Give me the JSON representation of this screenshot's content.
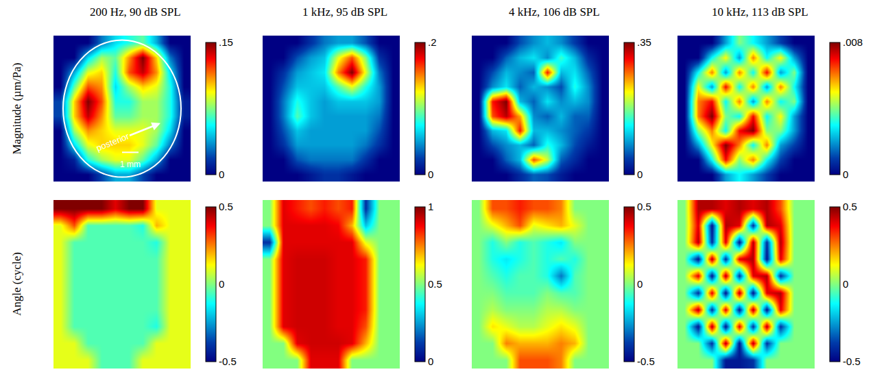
{
  "chart_data": [
    {
      "type": "heatmap",
      "title": "200 Hz, 90 dB SPL",
      "ylabel": "Magnitude (µm/Pa)",
      "color": "Jet",
      "tick_labels": false,
      "annotations": [
        {
          "text": "posterior"
        },
        {
          "text": "1 mm"
        }
      ],
      "zlim": [
        0,
        0.15
      ],
      "zticks": [
        0,
        {
          "value": 0.15,
          "label": ".15"
        }
      ],
      "z": [
        [
          0,
          0,
          0,
          0.03,
          0.05,
          0.06,
          0.07,
          0.04,
          0,
          0
        ],
        [
          0,
          0,
          0.05,
          0.08,
          0.07,
          0.11,
          0.15,
          0.1,
          0.03,
          0
        ],
        [
          0,
          0.04,
          0.09,
          0.1,
          0.06,
          0.12,
          0.14,
          0.11,
          0.05,
          0
        ],
        [
          0,
          0.07,
          0.12,
          0.11,
          0.05,
          0.08,
          0.1,
          0.09,
          0.06,
          0
        ],
        [
          0.02,
          0.1,
          0.15,
          0.12,
          0.06,
          0.06,
          0.08,
          0.08,
          0.06,
          0.01
        ],
        [
          0.02,
          0.1,
          0.14,
          0.11,
          0.07,
          0.07,
          0.08,
          0.08,
          0.06,
          0.01
        ],
        [
          0,
          0.08,
          0.11,
          0.1,
          0.09,
          0.09,
          0.09,
          0.08,
          0.05,
          0
        ],
        [
          0,
          0.05,
          0.09,
          0.1,
          0.1,
          0.1,
          0.09,
          0.07,
          0.03,
          0
        ],
        [
          0,
          0.01,
          0.06,
          0.08,
          0.09,
          0.09,
          0.07,
          0.04,
          0,
          0
        ],
        [
          0,
          0,
          0,
          0.02,
          0.04,
          0.04,
          0.02,
          0,
          0,
          0
        ]
      ]
    },
    {
      "type": "heatmap",
      "title": "1 kHz, 95 dB SPL",
      "color": "Jet",
      "tick_labels": false,
      "zlim": [
        0,
        0.2
      ],
      "zticks": [
        0,
        {
          "value": 0.2,
          "label": ".2"
        }
      ],
      "z": [
        [
          0,
          0,
          0,
          0.02,
          0.04,
          0.05,
          0.05,
          0.03,
          0,
          0
        ],
        [
          0,
          0,
          0.03,
          0.05,
          0.06,
          0.12,
          0.16,
          0.1,
          0.02,
          0
        ],
        [
          0,
          0.02,
          0.05,
          0.06,
          0.07,
          0.15,
          0.2,
          0.12,
          0.04,
          0
        ],
        [
          0,
          0.03,
          0.06,
          0.06,
          0.06,
          0.09,
          0.12,
          0.08,
          0.05,
          0
        ],
        [
          0,
          0.04,
          0.08,
          0.06,
          0.05,
          0.06,
          0.06,
          0.06,
          0.05,
          0
        ],
        [
          0,
          0.04,
          0.09,
          0.06,
          0.05,
          0.05,
          0.05,
          0.05,
          0.04,
          0
        ],
        [
          0,
          0.03,
          0.06,
          0.05,
          0.05,
          0.05,
          0.05,
          0.05,
          0.03,
          0
        ],
        [
          0,
          0.02,
          0.05,
          0.05,
          0.05,
          0.05,
          0.05,
          0.04,
          0.02,
          0
        ],
        [
          0,
          0,
          0.03,
          0.04,
          0.04,
          0.04,
          0.04,
          0.02,
          0,
          0
        ],
        [
          0,
          0,
          0,
          0.01,
          0.02,
          0.02,
          0.01,
          0,
          0,
          0
        ]
      ]
    },
    {
      "type": "heatmap",
      "title": "4 kHz, 106 dB SPL",
      "color": "Jet",
      "tick_labels": false,
      "zlim": [
        0,
        0.35
      ],
      "zticks": [
        0,
        {
          "value": 0.35,
          "label": ".35"
        }
      ],
      "z": [
        [
          0,
          0,
          0,
          0.05,
          0.08,
          0.1,
          0.08,
          0.04,
          0,
          0
        ],
        [
          0,
          0,
          0.06,
          0.1,
          0.12,
          0.08,
          0.15,
          0.1,
          0.03,
          0
        ],
        [
          0,
          0.05,
          0.1,
          0.08,
          0.06,
          0.3,
          0.1,
          0.12,
          0.06,
          0
        ],
        [
          0,
          0.08,
          0.12,
          0.06,
          0.1,
          0.08,
          0.05,
          0.14,
          0.08,
          0
        ],
        [
          0,
          0.3,
          0.35,
          0.1,
          0.06,
          0.12,
          0.08,
          0.1,
          0.08,
          0
        ],
        [
          0,
          0.28,
          0.33,
          0.25,
          0.08,
          0.06,
          0.1,
          0.06,
          0.06,
          0
        ],
        [
          0,
          0.1,
          0.12,
          0.3,
          0.1,
          0.1,
          0.08,
          0.06,
          0.04,
          0
        ],
        [
          0,
          0.05,
          0.08,
          0.1,
          0.06,
          0.14,
          0.1,
          0.05,
          0.02,
          0
        ],
        [
          0,
          0,
          0.06,
          0.1,
          0.28,
          0.2,
          0.06,
          0.03,
          0,
          0
        ],
        [
          0,
          0,
          0,
          0.03,
          0.06,
          0.05,
          0.02,
          0,
          0,
          0
        ]
      ]
    },
    {
      "type": "heatmap",
      "title": "10 kHz, 113 dB SPL",
      "color": "Jet",
      "tick_labels": false,
      "zlim": [
        0,
        0.008
      ],
      "zticks": [
        0,
        {
          "value": 0.008,
          "label": ".008"
        }
      ],
      "z": [
        [
          0,
          0,
          0,
          0.002,
          0.004,
          0.003,
          0.002,
          0.001,
          0,
          0
        ],
        [
          0,
          0,
          0.003,
          0.005,
          0.002,
          0.006,
          0.003,
          0.005,
          0.002,
          0
        ],
        [
          0,
          0.003,
          0.006,
          0.002,
          0.006,
          0.003,
          0.007,
          0.002,
          0.004,
          0
        ],
        [
          0,
          0.005,
          0.002,
          0.007,
          0.003,
          0.006,
          0.002,
          0.006,
          0.003,
          0
        ],
        [
          0,
          0.006,
          0.007,
          0.003,
          0.006,
          0.002,
          0.006,
          0.003,
          0.004,
          0
        ],
        [
          0,
          0.006,
          0.008,
          0.004,
          0.003,
          0.007,
          0.003,
          0.005,
          0.002,
          0
        ],
        [
          0,
          0.004,
          0.006,
          0.003,
          0.007,
          0.008,
          0.004,
          0.004,
          0.002,
          0
        ],
        [
          0,
          0.002,
          0.005,
          0.008,
          0.006,
          0.003,
          0.006,
          0.002,
          0.001,
          0
        ],
        [
          0,
          0,
          0.003,
          0.007,
          0.004,
          0.006,
          0.003,
          0.001,
          0,
          0
        ],
        [
          0,
          0,
          0,
          0.002,
          0.003,
          0.002,
          0.001,
          0,
          0,
          0
        ]
      ]
    },
    {
      "type": "heatmap",
      "ylabel": "Angle (cycle)",
      "color": "Jet",
      "tick_labels": false,
      "zlim": [
        -0.5,
        0.5
      ],
      "zticks": [
        -0.5,
        0,
        0.5
      ],
      "z": [
        [
          0.5,
          0.5,
          0.5,
          0.5,
          0.4,
          0.5,
          0.5,
          0.1,
          0.1,
          0.1
        ],
        [
          0.1,
          0.3,
          -0.05,
          -0.05,
          -0.05,
          -0.05,
          -0.1,
          0.2,
          0.1,
          0.1
        ],
        [
          0.1,
          -0.05,
          -0.05,
          -0.05,
          -0.05,
          -0.05,
          -0.05,
          -0.1,
          0.1,
          0.1
        ],
        [
          0.1,
          -0.05,
          -0.05,
          -0.05,
          -0.05,
          -0.05,
          -0.05,
          -0.05,
          0.1,
          0.1
        ],
        [
          0.1,
          -0.05,
          -0.05,
          -0.05,
          -0.05,
          -0.05,
          -0.05,
          -0.05,
          0.1,
          0.1
        ],
        [
          0.1,
          -0.05,
          -0.05,
          -0.05,
          -0.05,
          -0.05,
          -0.05,
          -0.05,
          0.1,
          0.1
        ],
        [
          0.1,
          -0.05,
          -0.05,
          -0.05,
          -0.05,
          -0.05,
          -0.05,
          -0.05,
          0.1,
          0.1
        ],
        [
          0.1,
          -0.05,
          -0.05,
          -0.05,
          -0.05,
          -0.05,
          -0.05,
          -0.1,
          0.1,
          0.1
        ],
        [
          0.1,
          0.1,
          -0.05,
          -0.05,
          -0.05,
          -0.05,
          -0.05,
          0.1,
          0.1,
          0.1
        ],
        [
          0.1,
          0.1,
          0.1,
          -0.05,
          -0.05,
          -0.05,
          0.1,
          0.1,
          0.1,
          0.1
        ]
      ]
    },
    {
      "type": "heatmap",
      "color": "Jet",
      "tick_labels": false,
      "zlim": [
        0,
        1
      ],
      "zticks": [
        0,
        0.5,
        1
      ],
      "z": [
        [
          0.5,
          0.9,
          0.85,
          0.8,
          0.85,
          0.8,
          0.85,
          0.1,
          0.5,
          0.5
        ],
        [
          0.5,
          0.9,
          0.9,
          0.9,
          0.9,
          0.88,
          0.7,
          0.3,
          0.5,
          0.5
        ],
        [
          0.1,
          0.9,
          0.9,
          0.9,
          0.9,
          0.9,
          0.9,
          0.6,
          0.5,
          0.5
        ],
        [
          0.5,
          0.9,
          0.92,
          0.92,
          0.92,
          0.9,
          0.9,
          0.85,
          0.5,
          0.5
        ],
        [
          0.5,
          0.9,
          0.92,
          0.92,
          0.92,
          0.9,
          0.9,
          0.85,
          0.5,
          0.5
        ],
        [
          0.5,
          0.9,
          0.92,
          0.92,
          0.92,
          0.9,
          0.9,
          0.85,
          0.5,
          0.5
        ],
        [
          0.5,
          0.9,
          0.92,
          0.92,
          0.92,
          0.9,
          0.9,
          0.85,
          0.5,
          0.5
        ],
        [
          0.5,
          0.9,
          0.92,
          0.92,
          0.92,
          0.9,
          0.9,
          0.8,
          0.5,
          0.5
        ],
        [
          0.5,
          0.5,
          0.9,
          0.92,
          0.92,
          0.92,
          0.9,
          0.7,
          0.5,
          0.5
        ],
        [
          0.5,
          0.5,
          0.5,
          0.9,
          0.9,
          0.9,
          0.5,
          0.5,
          0.5,
          0.5
        ]
      ]
    },
    {
      "type": "heatmap",
      "color": "Jet",
      "tick_labels": false,
      "zlim": [
        -0.5,
        0.5
      ],
      "zticks": [
        -0.5,
        0,
        0.5
      ],
      "z": [
        [
          0,
          0.3,
          0.3,
          0.35,
          0.3,
          0.3,
          0.25,
          0,
          0,
          0
        ],
        [
          0,
          0.1,
          0.2,
          0.3,
          0.1,
          0.15,
          0.2,
          0.1,
          0,
          0
        ],
        [
          0,
          -0.1,
          0,
          -0.1,
          -0.05,
          -0.1,
          -0.15,
          0,
          0,
          0
        ],
        [
          0,
          -0.1,
          -0.15,
          -0.1,
          -0.05,
          -0.1,
          -0.05,
          -0.1,
          0,
          0
        ],
        [
          0,
          -0.05,
          -0.1,
          -0.05,
          -0.05,
          -0.1,
          -0.3,
          -0.05,
          0,
          0
        ],
        [
          0,
          0,
          -0.05,
          -0.05,
          -0.05,
          0,
          -0.05,
          -0.05,
          0,
          0
        ],
        [
          0,
          0.05,
          0,
          0,
          0,
          0.05,
          0.05,
          0,
          0,
          0
        ],
        [
          0,
          0.15,
          0.1,
          0.05,
          0.05,
          0.1,
          0.15,
          0.1,
          0,
          0
        ],
        [
          0,
          0,
          0.25,
          0.2,
          0.2,
          0.2,
          0.25,
          0.2,
          0,
          0
        ],
        [
          0,
          0,
          0,
          0.3,
          0.3,
          0.3,
          0.25,
          0,
          0,
          0
        ]
      ]
    },
    {
      "type": "heatmap",
      "color": "Jet",
      "tick_labels": false,
      "zlim": [
        -0.5,
        0.5
      ],
      "zticks": [
        -0.5,
        0,
        0.5
      ],
      "z": [
        [
          0,
          0.45,
          0.45,
          0.4,
          0.45,
          0.4,
          0.45,
          0.3,
          0,
          0
        ],
        [
          0,
          0.4,
          -0.45,
          0.45,
          0.4,
          -0.4,
          0.45,
          0.4,
          0,
          0
        ],
        [
          0,
          0.45,
          -0.4,
          0.4,
          -0.45,
          0.45,
          -0.4,
          0.45,
          0,
          0
        ],
        [
          0,
          -0.45,
          0.45,
          -0.4,
          0.4,
          0.45,
          -0.45,
          0.4,
          0,
          0
        ],
        [
          0,
          0.4,
          -0.45,
          0.45,
          -0.4,
          0.4,
          0.45,
          -0.4,
          0,
          0
        ],
        [
          0,
          -0.4,
          0.4,
          -0.45,
          0.45,
          -0.45,
          0.4,
          0.45,
          0,
          0
        ],
        [
          0,
          0.45,
          -0.4,
          0.4,
          -0.45,
          0.45,
          -0.45,
          0.4,
          0,
          0
        ],
        [
          0,
          -0.45,
          0.45,
          -0.45,
          0.4,
          -0.4,
          0.45,
          -0.4,
          0,
          0
        ],
        [
          0,
          0,
          -0.4,
          0.45,
          -0.45,
          0.45,
          -0.4,
          0,
          0,
          0
        ],
        [
          0,
          0,
          0,
          -0.45,
          -0.45,
          -0.4,
          0,
          0,
          0,
          0
        ]
      ]
    }
  ]
}
